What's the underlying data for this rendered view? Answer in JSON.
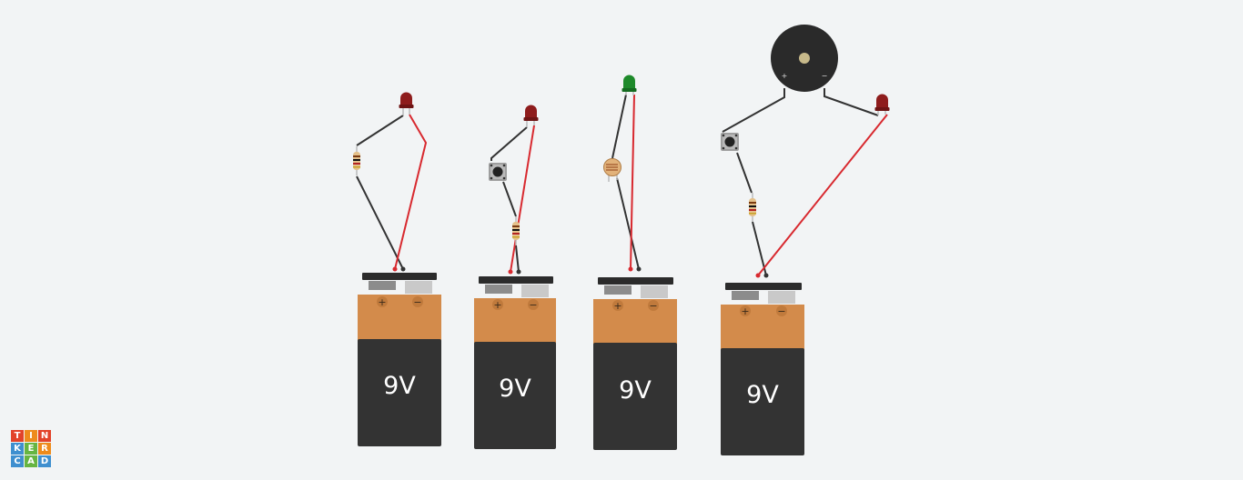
{
  "app": {
    "logo_letters": [
      "T",
      "I",
      "N",
      "K",
      "E",
      "R",
      "C",
      "A",
      "D"
    ],
    "logo_colors": [
      "#e2432a",
      "#ee8b1c",
      "#e2432a",
      "#3f8fcf",
      "#66b542",
      "#ee8b1c",
      "#3f8fcf",
      "#66b542",
      "#3f8fcf"
    ]
  },
  "circuits": [
    {
      "name": "led-resistor",
      "battery": {
        "voltage_label": "9V",
        "plus": "+",
        "minus": "−"
      },
      "led_color": "red"
    },
    {
      "name": "led-button-resistor",
      "battery": {
        "voltage_label": "9V",
        "plus": "+",
        "minus": "−"
      },
      "led_color": "red"
    },
    {
      "name": "led-photoresistor",
      "battery": {
        "voltage_label": "9V",
        "plus": "+",
        "minus": "−"
      },
      "led_color": "green"
    },
    {
      "name": "buzzer-button-resistor-led",
      "battery": {
        "voltage_label": "9V",
        "plus": "+",
        "minus": "−"
      },
      "led_color": "red",
      "buzzer": {
        "plus": "+",
        "minus": "−"
      }
    }
  ],
  "colors": {
    "wire_black": "#333333",
    "wire_red": "#d8292f",
    "battery_body": "#333333",
    "battery_cap": "#d38b4b",
    "led_red": "#8e1c1c",
    "led_green": "#1e8a2a",
    "resistor_body": "#e4c08a"
  }
}
